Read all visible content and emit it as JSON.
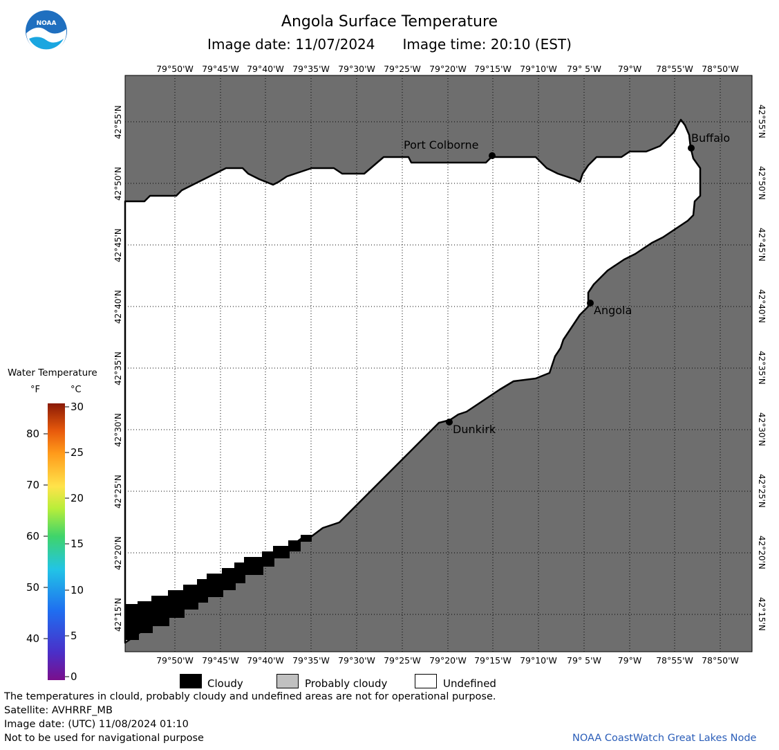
{
  "header": {
    "title": "Angola Surface Temperature",
    "image_date_label": "Image date: 11/07/2024",
    "image_time_label": "Image time: 20:10 (EST)",
    "logo_text": "NOAA"
  },
  "map": {
    "longitude_labels": [
      "79°50'W",
      "79°45'W",
      "79°40'W",
      "79°35'W",
      "79°30'W",
      "79°25'W",
      "79°20'W",
      "79°15'W",
      "79°10'W",
      "79° 5'W",
      "79°W",
      "78°55'W",
      "78°50'W"
    ],
    "latitude_labels": [
      "42°55'N",
      "42°50'N",
      "42°45'N",
      "42°40'N",
      "42°35'N",
      "42°30'N",
      "42°25'N",
      "42°20'N",
      "42°15'N"
    ],
    "cities": [
      {
        "name": "Port Colborne"
      },
      {
        "name": "Buffalo"
      },
      {
        "name": "Angola"
      },
      {
        "name": "Dunkirk"
      }
    ],
    "colors": {
      "land": "#6e6e6e",
      "undefined": "#ffffff",
      "cloudy": "#000000",
      "probably_cloudy": "#c0c0c0"
    }
  },
  "colorbar": {
    "title": "Water Temperature",
    "unit_f": "°F",
    "unit_c": "°C",
    "f_ticks": [
      "80",
      "70",
      "60",
      "50",
      "40"
    ],
    "c_ticks": [
      "30",
      "25",
      "20",
      "15",
      "10",
      "5",
      "0"
    ]
  },
  "legend": {
    "cloudy": "Cloudy",
    "probably_cloudy": "Probably cloudy",
    "undefined": "Undefined"
  },
  "footer": {
    "disclaimer": "The temperatures in clould, probably cloudy and undefined areas are not for operational purpose.",
    "satellite": "Satellite: AVHRRF_MB",
    "utc_date": "Image date: (UTC) 11/08/2024  01:10",
    "navigation": "Not to be used for navigational purpose",
    "credit": "NOAA CoastWatch Great Lakes Node"
  }
}
